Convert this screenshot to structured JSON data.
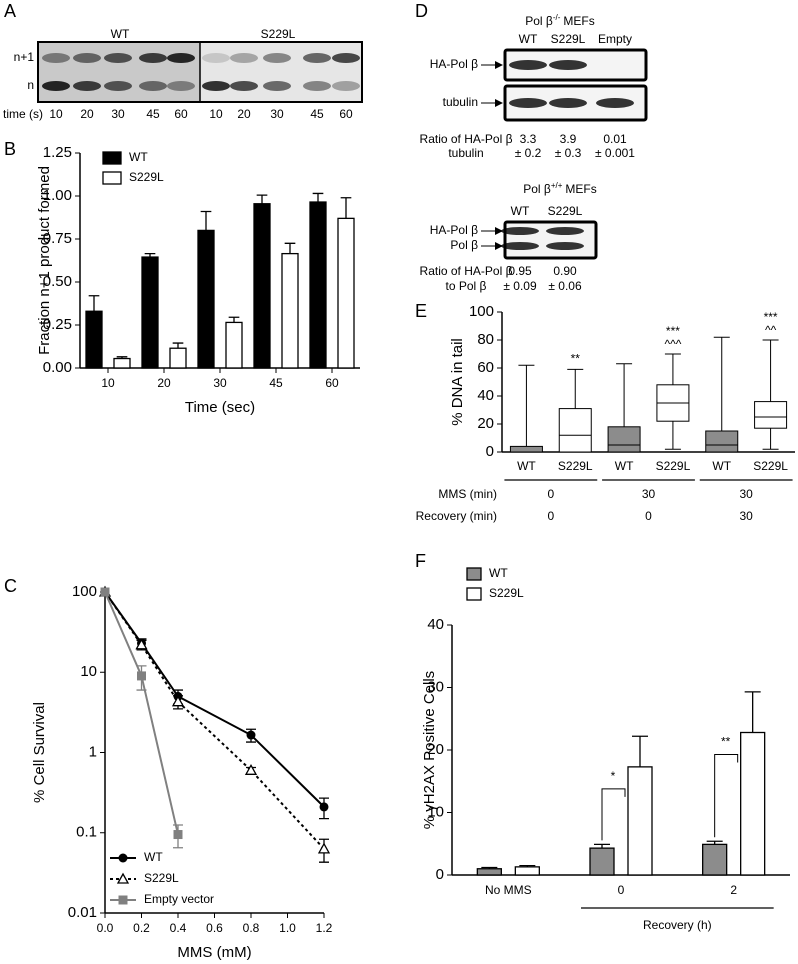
{
  "panel_labels": [
    "A",
    "B",
    "C",
    "D",
    "E",
    "F"
  ],
  "gel_a": {
    "groups": [
      "WT",
      "S229L"
    ],
    "rows": [
      "n+1",
      "n"
    ],
    "time_label": "time (s)",
    "times": [
      "10",
      "20",
      "30",
      "45",
      "60",
      "10",
      "20",
      "30",
      "45",
      "60"
    ]
  },
  "gel_d": [
    {
      "title": {
        "main": "Pol β",
        "sup": "-/-",
        "rest": "MEFs"
      },
      "lanes": [
        "WT",
        "S229L",
        "Empty"
      ],
      "rows": [
        "HA-Pol β",
        "tubulin"
      ],
      "ratio_label": [
        "Ratio of HA-Pol β",
        "tubulin"
      ],
      "ratios": [
        "3.3",
        "3.9",
        "0.01"
      ],
      "ratio_errors": [
        "± 0.2",
        "± 0.3",
        "± 0.001"
      ]
    },
    {
      "title": {
        "main": "Pol β",
        "sup": "+/+",
        "rest": "MEFs"
      },
      "lanes": [
        "WT",
        "S229L"
      ],
      "rows": [
        "HA-Pol β",
        "Pol β"
      ],
      "ratio_label": [
        "Ratio of HA-Pol β",
        "to Pol β"
      ],
      "ratios": [
        "0.95",
        "0.90"
      ],
      "ratio_errors": [
        "± 0.09",
        "± 0.06"
      ]
    }
  ],
  "chart_data": [
    {
      "type": "bar",
      "xlabel": "Time (sec)",
      "ylabel": "Fraction n+1 product formed",
      "categories": [
        "10",
        "20",
        "30",
        "45",
        "60"
      ],
      "series": [
        {
          "name": "WT",
          "color": "#000000",
          "values": [
            0.33,
            0.645,
            0.8,
            0.955,
            0.965
          ],
          "errors": [
            0.09,
            0.02,
            0.11,
            0.05,
            0.05
          ]
        },
        {
          "name": "S229L",
          "color": "#ffffff",
          "values": [
            0.055,
            0.115,
            0.265,
            0.665,
            0.87
          ],
          "errors": [
            0.01,
            0.03,
            0.03,
            0.06,
            0.12
          ]
        }
      ],
      "ylim": [
        0,
        1.25
      ],
      "yticks": [
        {
          "value": 0,
          "label": "0.00"
        },
        0.25,
        {
          "value": 0.5,
          "label": "0.50"
        },
        0.75,
        {
          "value": 1,
          "label": "1.00"
        },
        1.25
      ],
      "legend": "upper left"
    },
    {
      "type": "line",
      "xlabel": "MMS (mM)",
      "ylabel": "% Cell Survival",
      "log_y": true,
      "series": [
        {
          "name": "WT",
          "color": "#000000",
          "marker": "circle",
          "line_style": "solid",
          "x": [
            0,
            0.2,
            0.4,
            0.8,
            1.2
          ],
          "values": [
            100,
            23,
            5,
            1.65,
            0.21
          ],
          "errors": [
            null,
            3,
            1,
            0.3,
            0.06
          ]
        },
        {
          "name": "S229L",
          "color": "#000000",
          "marker": "triangle",
          "line_style": "dotted",
          "x": [
            0,
            0.2,
            0.4,
            0.8,
            1.2
          ],
          "values": [
            100,
            22,
            4.3,
            0.6,
            0.063
          ],
          "errors": [
            null,
            3,
            0.8,
            0.05,
            0.02
          ]
        },
        {
          "name": "Empty vector",
          "color": "#808080",
          "marker": "square",
          "line_style": "solid",
          "x": [
            0,
            0.2,
            0.4
          ],
          "values": [
            100,
            9,
            0.095
          ],
          "errors": [
            null,
            3,
            0.03
          ]
        }
      ],
      "xlim": [
        0,
        1.2
      ],
      "xticks": [
        {
          "value": 0,
          "label": "0.0"
        },
        0.2,
        0.4,
        0.6,
        0.8,
        {
          "value": 1,
          "label": "1.0"
        },
        1.2
      ],
      "ylim": [
        0.01,
        100
      ],
      "yticks": [
        0.01,
        0.1,
        1,
        10,
        100
      ],
      "legend": "lower left"
    },
    {
      "type": "box",
      "ylabel": "% DNA in tail",
      "categories": [
        "WT",
        "S229L",
        "WT",
        "S229L",
        "WT",
        "S229L"
      ],
      "box_colors": [
        "#8c8c8c",
        "#ffffff",
        "#8c8c8c",
        "#ffffff",
        "#8c8c8c",
        "#ffffff"
      ],
      "min": [
        0,
        0,
        0,
        2,
        0,
        2
      ],
      "q1": [
        0,
        0,
        0,
        22,
        0,
        17
      ],
      "median": [
        0,
        12,
        5,
        35,
        5,
        25
      ],
      "q3": [
        4,
        31,
        18,
        48,
        15,
        36
      ],
      "max": [
        62,
        59,
        63,
        70,
        82,
        80
      ],
      "significance": [
        null,
        "**",
        null,
        "***",
        null,
        "***"
      ],
      "significance_2": [
        null,
        null,
        null,
        "^^^",
        null,
        "^^"
      ],
      "ylim": [
        0,
        100
      ],
      "yticks": [
        0,
        20,
        40,
        60,
        80,
        100
      ],
      "conditions": [
        {
          "label": "MMS (min)",
          "values": [
            "0",
            "30",
            "30"
          ]
        },
        {
          "label": "Recovery (min)",
          "values": [
            "0",
            "0",
            "30"
          ]
        }
      ]
    },
    {
      "type": "bar",
      "ylabel": "% γH2AX Positive Cells",
      "group_label": "Recovery (h)",
      "categories": [
        "No MMS",
        "0",
        "2"
      ],
      "series": [
        {
          "name": "WT",
          "color": "#8c8c8c",
          "values": [
            1.0,
            4.3,
            4.9
          ],
          "errors": [
            0.2,
            0.6,
            0.5
          ]
        },
        {
          "name": "S229L",
          "color": "#ffffff",
          "values": [
            1.3,
            17.3,
            22.8
          ],
          "errors": [
            0.2,
            4.9,
            6.5
          ]
        }
      ],
      "significance": [
        null,
        "*",
        "**"
      ],
      "ylim": [
        0,
        40
      ],
      "yticks": [
        0,
        10,
        20,
        30,
        40
      ],
      "legend": "upper left"
    }
  ]
}
